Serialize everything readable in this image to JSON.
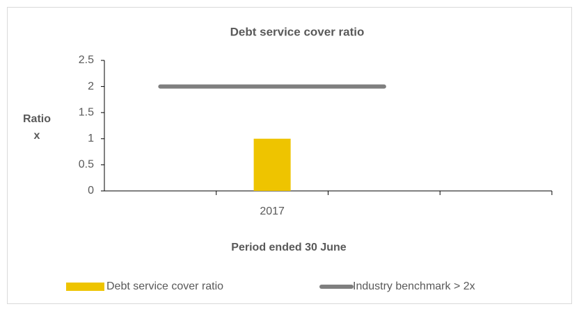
{
  "chart_data": {
    "type": "bar",
    "title": "Debt service cover ratio",
    "y_label": "Ratio x",
    "x_label": "Period ended 30 June",
    "categories": [
      null,
      "2017",
      null,
      null
    ],
    "series": [
      {
        "name": "Debt service cover ratio",
        "type": "bar",
        "color": "#eec400",
        "values": [
          null,
          1,
          null,
          null
        ]
      },
      {
        "name": "Industry benchmark > 2x",
        "type": "line",
        "color": "#7f7f7f",
        "values": [
          2,
          2,
          2,
          null
        ]
      }
    ],
    "ylim": [
      0,
      2.5
    ],
    "yticks": [
      0,
      0.5,
      1,
      1.5,
      2,
      2.5
    ],
    "grid": false,
    "legend": "bottom"
  }
}
